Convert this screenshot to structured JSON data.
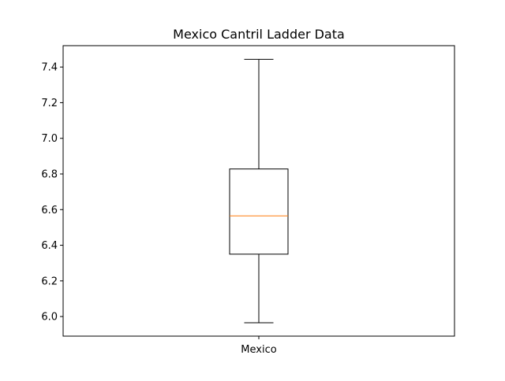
{
  "chart_data": {
    "type": "box",
    "title": "Mexico Cantril Ladder Data",
    "xlabel": "",
    "ylabel": "",
    "categories": [
      "Mexico"
    ],
    "boxes": [
      {
        "category": "Mexico",
        "whisker_low": 5.965,
        "q1": 6.35,
        "median": 6.565,
        "q3": 6.828,
        "whisker_high": 7.443
      }
    ],
    "ylim": [
      5.89,
      7.52
    ],
    "yticks": [
      6.0,
      6.2,
      6.4,
      6.6,
      6.8,
      7.0,
      7.2,
      7.4
    ],
    "ytick_labels": [
      "6.0",
      "6.2",
      "6.4",
      "6.6",
      "6.8",
      "7.0",
      "7.2",
      "7.4"
    ],
    "grid": false,
    "legend": "none",
    "colors": {
      "box": "#000000",
      "median": "#ff7f0e",
      "axes": "#000000",
      "background": "#ffffff"
    }
  }
}
